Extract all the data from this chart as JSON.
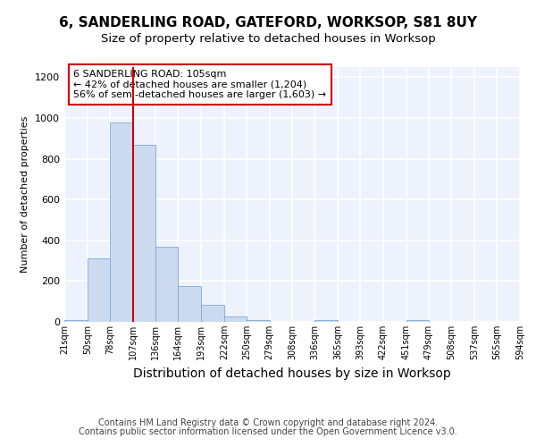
{
  "title1": "6, SANDERLING ROAD, GATEFORD, WORKSOP, S81 8UY",
  "title2": "Size of property relative to detached houses in Worksop",
  "xlabel": "Distribution of detached houses by size in Worksop",
  "ylabel": "Number of detached properties",
  "bin_edges": [
    21,
    50,
    78,
    107,
    136,
    164,
    193,
    222,
    250,
    279,
    308,
    336,
    365,
    393,
    422,
    451,
    479,
    508,
    537,
    565,
    594
  ],
  "bin_counts": [
    10,
    310,
    980,
    870,
    370,
    175,
    85,
    25,
    10,
    0,
    0,
    10,
    0,
    0,
    0,
    10,
    0,
    0,
    0,
    0
  ],
  "bar_color": "#ccdaf0",
  "bar_edge_color": "#7aaad8",
  "property_line_x": 107,
  "property_line_color": "#cc0000",
  "annotation_text": "6 SANDERLING ROAD: 105sqm\n← 42% of detached houses are smaller (1,204)\n56% of semi-detached houses are larger (1,603) →",
  "annotation_box_color": "#ffffff",
  "annotation_box_edge_color": "#cc0000",
  "ylim": [
    0,
    1250
  ],
  "yticks": [
    0,
    200,
    400,
    600,
    800,
    1000,
    1200
  ],
  "tick_labels": [
    "21sqm",
    "50sqm",
    "78sqm",
    "107sqm",
    "136sqm",
    "164sqm",
    "193sqm",
    "222sqm",
    "250sqm",
    "279sqm",
    "308sqm",
    "336sqm",
    "365sqm",
    "393sqm",
    "422sqm",
    "451sqm",
    "479sqm",
    "508sqm",
    "537sqm",
    "565sqm",
    "594sqm"
  ],
  "footer1": "Contains HM Land Registry data © Crown copyright and database right 2024.",
  "footer2": "Contains public sector information licensed under the Open Government Licence v3.0.",
  "background_color": "#eef2fc",
  "grid_color": "#ffffff",
  "title1_fontsize": 11,
  "title2_fontsize": 9.5,
  "xlabel_fontsize": 10,
  "ylabel_fontsize": 8,
  "annot_fontsize": 8,
  "footer_fontsize": 7,
  "ytick_fontsize": 8,
  "xtick_fontsize": 7
}
